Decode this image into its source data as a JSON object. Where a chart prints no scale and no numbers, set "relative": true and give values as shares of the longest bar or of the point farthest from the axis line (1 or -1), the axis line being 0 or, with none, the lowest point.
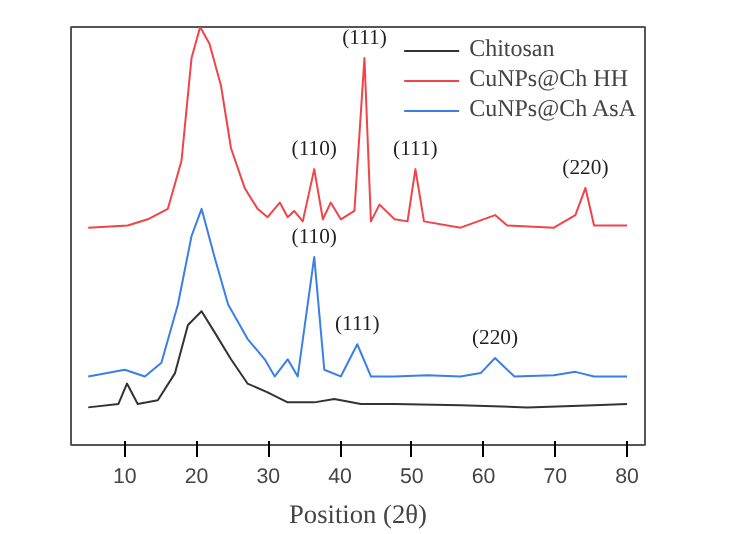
{
  "chart_data": {
    "type": "line",
    "xlabel": "Position (2θ)",
    "relative": true,
    "xlim": [
      2.5,
      82.5
    ],
    "xticks": [
      10,
      20,
      30,
      40,
      50,
      60,
      70,
      80
    ],
    "grid": false,
    "legend": "top right",
    "line_style": "solid",
    "marker": "none",
    "x": [
      4.9,
      9.1,
      10.3,
      11.8,
      14.6,
      17.0,
      18.8,
      20.7,
      22.5,
      24.8,
      27.1,
      29.9,
      32.7,
      36.4,
      39.2,
      42.9,
      47.6,
      56.8,
      66.1,
      75.4,
      80.0
    ],
    "series": [
      {
        "name": "Chitosan",
        "color": "#333333",
        "values": [
          0.09,
          0.098,
          0.147,
          0.098,
          0.107,
          0.172,
          0.287,
          0.32,
          0.27,
          0.205,
          0.147,
          0.126,
          0.102,
          0.102,
          0.11,
          0.098,
          0.098,
          0.095,
          0.09,
          0.095,
          0.098
        ]
      },
      {
        "name": "CuNPs@Ch HH",
        "color": "#f0444a",
        "x": [
          4.9,
          10.4,
          13.2,
          16.0,
          17.9,
          19.3,
          20.5,
          21.8,
          23.4,
          24.8,
          26.7,
          28.5,
          29.9,
          31.6,
          32.7,
          33.6,
          34.8,
          36.4,
          37.6,
          38.7,
          40.1,
          42.0,
          43.4,
          44.3,
          45.5,
          47.6,
          49.4,
          50.5,
          51.7,
          56.8,
          61.6,
          63.3,
          69.8,
          72.8,
          74.2,
          75.4,
          80.0
        ],
        "values": [
          0.52,
          0.525,
          0.54,
          0.565,
          0.68,
          0.926,
          1.0,
          0.96,
          0.86,
          0.71,
          0.615,
          0.565,
          0.545,
          0.58,
          0.545,
          0.56,
          0.535,
          0.66,
          0.54,
          0.58,
          0.54,
          0.56,
          0.926,
          0.535,
          0.575,
          0.54,
          0.535,
          0.66,
          0.535,
          0.52,
          0.55,
          0.525,
          0.52,
          0.55,
          0.615,
          0.525,
          0.525
        ]
      },
      {
        "name": "CuNPs@Ch AsA",
        "color": "#3a7fe8",
        "x": [
          4.9,
          10.0,
          12.8,
          15.1,
          17.4,
          19.3,
          20.7,
          22.5,
          24.4,
          27.1,
          29.5,
          30.9,
          32.7,
          34.1,
          36.4,
          37.8,
          40.1,
          42.4,
          44.3,
          47.6,
          52.2,
          56.8,
          59.6,
          61.6,
          64.3,
          69.8,
          72.8,
          75.4,
          80.0
        ],
        "values": [
          0.164,
          0.18,
          0.164,
          0.197,
          0.336,
          0.5,
          0.565,
          0.45,
          0.336,
          0.254,
          0.205,
          0.164,
          0.205,
          0.164,
          0.45,
          0.18,
          0.164,
          0.241,
          0.164,
          0.164,
          0.167,
          0.164,
          0.172,
          0.208,
          0.164,
          0.167,
          0.175,
          0.164,
          0.164
        ]
      }
    ],
    "annotations": [
      {
        "text": "(111)",
        "x": 43.4,
        "y": 0.926
      },
      {
        "text": "(110)",
        "x": 36.4,
        "y": 0.66
      },
      {
        "text": "(111)",
        "x": 50.5,
        "y": 0.66
      },
      {
        "text": "(220)",
        "x": 74.2,
        "y": 0.615
      },
      {
        "text": "(110)",
        "x": 36.4,
        "y": 0.45
      },
      {
        "text": "(111)",
        "x": 42.4,
        "y": 0.241
      },
      {
        "text": "(220)",
        "x": 61.6,
        "y": 0.208
      }
    ]
  }
}
